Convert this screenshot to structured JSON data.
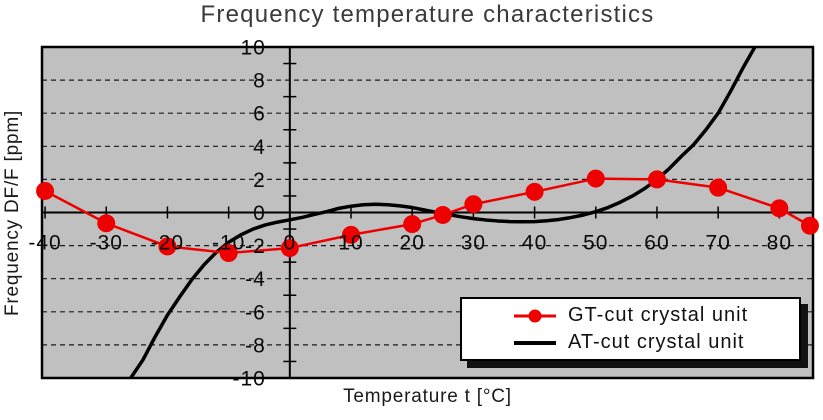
{
  "chart_data": {
    "type": "line",
    "title": "Frequency temperature characteristics",
    "xlabel": "Temperature t [°C]",
    "ylabel": "Frequency DF/F [ppm]",
    "xlim": [
      -40.5,
      85.5
    ],
    "ylim": [
      -10,
      10
    ],
    "x_ticks": [
      -40,
      -30,
      -20,
      -10,
      0,
      10,
      20,
      30,
      40,
      50,
      60,
      70,
      80
    ],
    "y_ticks": [
      10,
      8,
      6,
      4,
      2,
      0,
      -2,
      -4,
      -6,
      -8,
      -10
    ],
    "y_minor_ticks": [
      9,
      7,
      5,
      3,
      1,
      -1,
      -3,
      -5,
      -7,
      -9
    ],
    "grid": "horizontal-dashed-every-2ppm",
    "legend_position": "inside-bottom-right",
    "series": [
      {
        "name": "GT-cut crystal unit",
        "color": "#ee0000",
        "marker": "filled-circle",
        "line_style": "solid",
        "x": [
          -40,
          -30,
          -20,
          -10,
          0,
          10,
          20,
          25,
          30,
          40,
          50,
          60,
          70,
          80,
          85
        ],
        "y": [
          1.3,
          -0.65,
          -2.05,
          -2.45,
          -2.15,
          -1.35,
          -0.7,
          -0.15,
          0.5,
          1.25,
          2.05,
          2.0,
          1.5,
          0.25,
          -0.8
        ]
      },
      {
        "name": "AT-cut crystal unit",
        "color": "#000000",
        "marker": "none",
        "line_style": "solid",
        "x": [
          -26,
          -24,
          -22,
          -20,
          -18,
          -16,
          -14,
          -12,
          -10,
          -8,
          -6,
          -4,
          -2,
          0,
          2,
          4,
          6,
          8,
          10,
          12,
          14,
          16,
          18,
          20,
          22,
          24,
          26,
          28,
          30,
          32,
          34,
          36,
          38,
          40,
          42,
          44,
          46,
          48,
          50,
          52,
          54,
          56,
          58,
          60,
          62,
          64,
          66,
          68,
          70,
          72,
          74,
          76
        ],
        "y": [
          -10,
          -8.9,
          -7.5,
          -6.2,
          -5.1,
          -4.05,
          -3.15,
          -2.4,
          -1.8,
          -1.35,
          -1.0,
          -0.75,
          -0.58,
          -0.44,
          -0.3,
          -0.12,
          0.05,
          0.25,
          0.38,
          0.47,
          0.5,
          0.47,
          0.4,
          0.3,
          0.15,
          0.0,
          -0.13,
          -0.26,
          -0.37,
          -0.45,
          -0.51,
          -0.55,
          -0.56,
          -0.55,
          -0.5,
          -0.42,
          -0.3,
          -0.15,
          0.05,
          0.3,
          0.62,
          1.0,
          1.45,
          2.0,
          2.65,
          3.4,
          4.1,
          5.0,
          6.0,
          7.3,
          8.7,
          10
        ]
      }
    ]
  },
  "legend": {
    "items": [
      {
        "label": "GT-cut crystal unit",
        "swatch": "red-line-with-dot"
      },
      {
        "label": "AT-cut crystal unit",
        "swatch": "black-line"
      }
    ]
  },
  "colors": {
    "plot_bg": "#c0c0c0",
    "grid_line": "#1a1a1a",
    "axis_line": "#000000",
    "frame": "#000000",
    "gt_red": "#ee0000",
    "at_black": "#000000",
    "tick_text": "#0a0a0a",
    "title_text": "#3a3a3a",
    "legend_bg": "#ffffff",
    "legend_shadow": "#111111"
  }
}
